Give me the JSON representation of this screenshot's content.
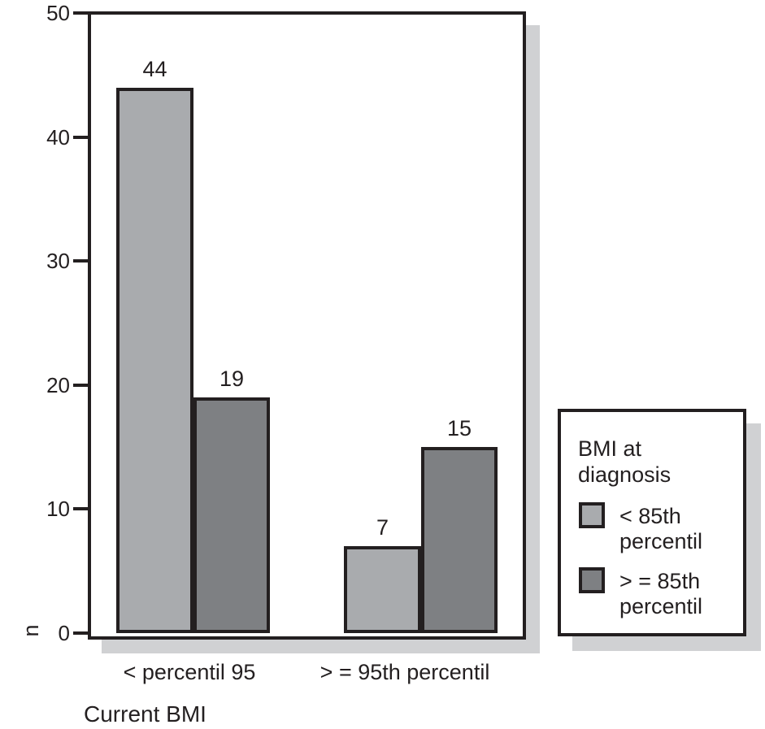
{
  "chart_data": {
    "type": "bar",
    "title": "",
    "categories": [
      "< percentil 95",
      "> = 95th percentil"
    ],
    "series": [
      {
        "name": "< 85th percentil",
        "values": [
          44,
          7
        ],
        "color": "#a9abae"
      },
      {
        "name": "> = 85th percentil",
        "values": [
          19,
          15
        ],
        "color": "#7e8083"
      }
    ],
    "bar_value_labels": [
      [
        44,
        19
      ],
      [
        7,
        15
      ]
    ],
    "xlabel": "Current BMI",
    "ylabel": "n",
    "ylim": [
      0,
      50
    ],
    "yticks": [
      0,
      10,
      20,
      30,
      40,
      50
    ],
    "grid": false,
    "legend": {
      "title": "BMI at diagnosis",
      "position": "right-outside",
      "entries": [
        "< 85th percentil",
        "> = 85th percentil"
      ]
    },
    "colors": {
      "bar_border": "#231f20",
      "frame_border": "#231f20",
      "drop_shadow": "#d0d1d3",
      "background": "#ffffff",
      "text": "#231f20",
      "series_light": "#a9abae",
      "series_dark": "#7e8083"
    }
  }
}
